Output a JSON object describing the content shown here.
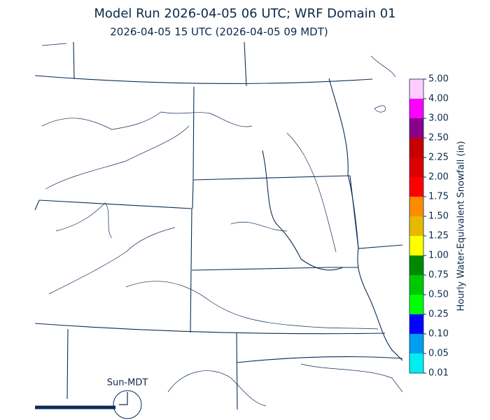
{
  "title": "Model Run 2026-04-05 06 UTC; WRF Domain 01",
  "subtitle": "2026-04-05 15 UTC  (2026-04-05 09 MDT)",
  "time_zone_label": "Sun-MDT",
  "colorbar": {
    "label": "Hourly Water-Equivalent Snowfall (in)",
    "ticks": [
      {
        "value": 0.01,
        "label": "0.01"
      },
      {
        "value": 0.05,
        "label": "0.05"
      },
      {
        "value": 0.1,
        "label": "0.10"
      },
      {
        "value": 0.25,
        "label": "0.25"
      },
      {
        "value": 0.5,
        "label": "0.50"
      },
      {
        "value": 0.75,
        "label": "0.75"
      },
      {
        "value": 1,
        "label": "1.00"
      },
      {
        "value": 1.25,
        "label": "1.25"
      },
      {
        "value": 1.5,
        "label": "1.50"
      },
      {
        "value": 1.75,
        "label": "1.75"
      },
      {
        "value": 2,
        "label": "2.00"
      },
      {
        "value": 2.25,
        "label": "2.25"
      },
      {
        "value": 2.5,
        "label": "2.50"
      },
      {
        "value": 3,
        "label": "3.00"
      },
      {
        "value": 4,
        "label": "4.00"
      },
      {
        "value": 5,
        "label": "5.00"
      }
    ],
    "colors": [
      "#00eeee",
      "#009eee",
      "#0000ff",
      "#00ff00",
      "#00c800",
      "#008800",
      "#ffff00",
      "#e6b800",
      "#ff8c00",
      "#ff0000",
      "#dd0000",
      "#c80000",
      "#8b008b",
      "#ff00ff",
      "#ffccff"
    ]
  }
}
